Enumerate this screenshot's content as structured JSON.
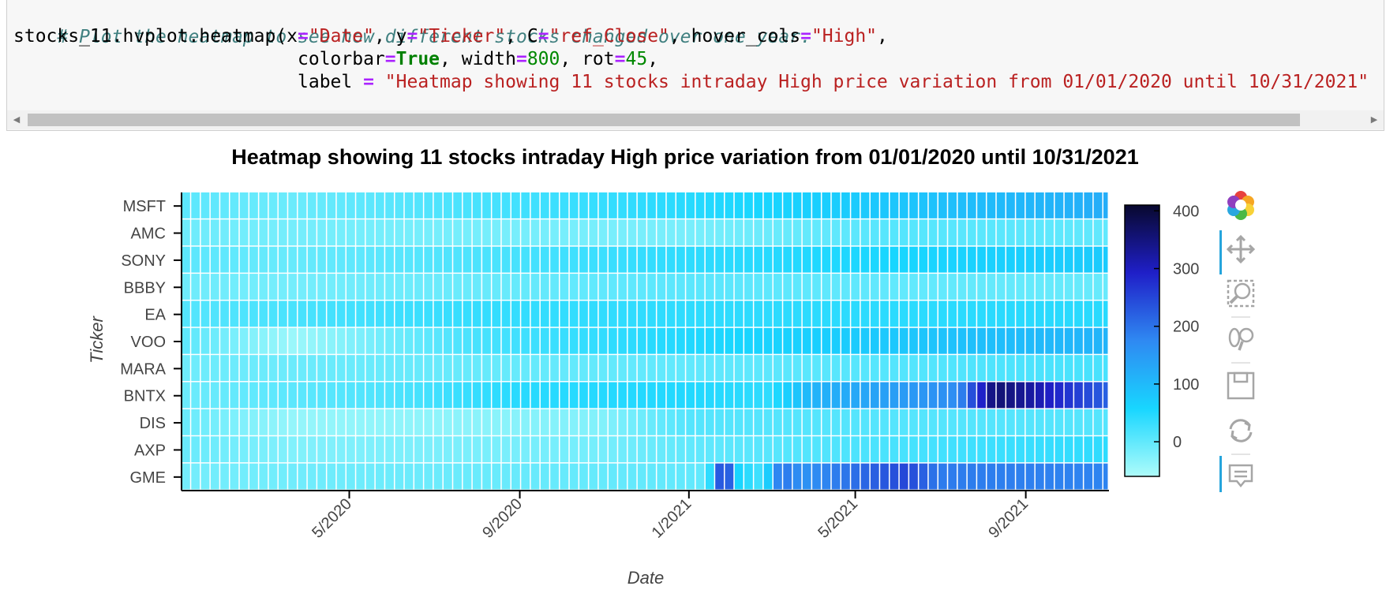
{
  "code": {
    "line1": "# Plot the heatmap to see how different stocks changed over one year.",
    "line2": {
      "a": "stocks_11.hvplot.heatmap(x",
      "eq": "=",
      "s1": "\"Date\"",
      "b": ", y",
      "s2": "\"Ticker\"",
      "c": ", C",
      "s3": "\"ref_Close\"",
      "d": ", hover_cols",
      "s4": "\"High\"",
      "e": ","
    },
    "line3": {
      "a": "colorbar",
      "eq": "=",
      "kw": "True",
      "b": ", width",
      "n1": "800",
      "c": ", rot",
      "n2": "45",
      "d": ","
    },
    "line4": {
      "a": "label ",
      "eq": "=",
      "s": " \"Heatmap showing 11 stocks intraday High price variation from 01/01/2020 until 10/31/2021\""
    }
  },
  "scrollbar": {
    "left_arrow": "◀",
    "right_arrow": "▶"
  },
  "chart_data": {
    "type": "heatmap",
    "title": "Heatmap showing 11 stocks intraday High price variation from 01/01/2020 until 10/31/2021",
    "xlabel": "Date",
    "ylabel": "Ticker",
    "x_range": [
      "2020-01-01",
      "2021-10-31"
    ],
    "x_ticks": [
      {
        "label": "5/2020",
        "date": "2020-05-01"
      },
      {
        "label": "9/2020",
        "date": "2020-09-01"
      },
      {
        "label": "1/2021",
        "date": "2021-01-01"
      },
      {
        "label": "5/2021",
        "date": "2021-05-01"
      },
      {
        "label": "9/2021",
        "date": "2021-09-01"
      }
    ],
    "tickers": [
      "MSFT",
      "AMC",
      "SONY",
      "BBBY",
      "EA",
      "VOO",
      "MARA",
      "BNTX",
      "DIS",
      "AXP",
      "GME"
    ],
    "interval": "weekly",
    "series": [
      {
        "name": "MSFT",
        "profile": [
          {
            "date": "2020-01-01",
            "value": 5
          },
          {
            "date": "2020-03-20",
            "value": -8
          },
          {
            "date": "2020-08-01",
            "value": 20
          },
          {
            "date": "2021-01-01",
            "value": 45
          },
          {
            "date": "2021-10-31",
            "value": 120
          }
        ]
      },
      {
        "name": "AMC",
        "profile": [
          {
            "date": "2020-01-01",
            "value": -10
          },
          {
            "date": "2020-03-20",
            "value": -15
          },
          {
            "date": "2021-01-01",
            "value": -18
          },
          {
            "date": "2021-06-01",
            "value": 10
          },
          {
            "date": "2021-10-31",
            "value": 0
          }
        ]
      },
      {
        "name": "SONY",
        "profile": [
          {
            "date": "2020-01-01",
            "value": 5
          },
          {
            "date": "2020-03-20",
            "value": -5
          },
          {
            "date": "2021-01-01",
            "value": 40
          },
          {
            "date": "2021-10-31",
            "value": 75
          }
        ]
      },
      {
        "name": "BBBY",
        "profile": [
          {
            "date": "2020-01-01",
            "value": -10
          },
          {
            "date": "2020-03-20",
            "value": -15
          },
          {
            "date": "2021-01-01",
            "value": 5
          },
          {
            "date": "2021-10-31",
            "value": -5
          }
        ]
      },
      {
        "name": "EA",
        "profile": [
          {
            "date": "2020-01-01",
            "value": 10
          },
          {
            "date": "2020-04-01",
            "value": 20
          },
          {
            "date": "2020-08-01",
            "value": 35
          },
          {
            "date": "2021-01-01",
            "value": 40
          },
          {
            "date": "2021-10-31",
            "value": 45
          }
        ]
      },
      {
        "name": "VOO",
        "profile": [
          {
            "date": "2020-01-01",
            "value": 5
          },
          {
            "date": "2020-03-23",
            "value": -45
          },
          {
            "date": "2020-05-01",
            "value": -25
          },
          {
            "date": "2020-08-01",
            "value": 20
          },
          {
            "date": "2021-01-01",
            "value": 50
          },
          {
            "date": "2021-10-31",
            "value": 110
          }
        ]
      },
      {
        "name": "MARA",
        "profile": [
          {
            "date": "2020-01-01",
            "value": -10
          },
          {
            "date": "2021-01-01",
            "value": 0
          },
          {
            "date": "2021-10-31",
            "value": 20
          }
        ]
      },
      {
        "name": "BNTX",
        "profile": [
          {
            "date": "2020-01-01",
            "value": -8
          },
          {
            "date": "2020-06-01",
            "value": 15
          },
          {
            "date": "2020-09-01",
            "value": 45
          },
          {
            "date": "2021-01-01",
            "value": 50
          },
          {
            "date": "2021-03-01",
            "value": 40
          },
          {
            "date": "2021-04-01",
            "value": 110
          },
          {
            "date": "2021-07-15",
            "value": 170
          },
          {
            "date": "2021-08-10",
            "value": 360
          },
          {
            "date": "2021-09-01",
            "value": 330
          },
          {
            "date": "2021-10-01",
            "value": 270
          },
          {
            "date": "2021-10-31",
            "value": 220
          }
        ]
      },
      {
        "name": "DIS",
        "profile": [
          {
            "date": "2020-01-01",
            "value": -5
          },
          {
            "date": "2020-03-23",
            "value": -40
          },
          {
            "date": "2020-07-01",
            "value": -35
          },
          {
            "date": "2020-11-01",
            "value": -25
          },
          {
            "date": "2021-01-01",
            "value": 10
          },
          {
            "date": "2021-10-31",
            "value": 10
          }
        ]
      },
      {
        "name": "AXP",
        "profile": [
          {
            "date": "2020-01-01",
            "value": -5
          },
          {
            "date": "2020-03-23",
            "value": -25
          },
          {
            "date": "2020-11-01",
            "value": -15
          },
          {
            "date": "2021-01-01",
            "value": 0
          },
          {
            "date": "2021-10-31",
            "value": 40
          }
        ]
      },
      {
        "name": "GME",
        "profile": [
          {
            "date": "2020-01-01",
            "value": -15
          },
          {
            "date": "2021-01-15",
            "value": 0
          },
          {
            "date": "2021-01-27",
            "value": 320
          },
          {
            "date": "2021-02-05",
            "value": 60
          },
          {
            "date": "2021-02-24",
            "value": 20
          },
          {
            "date": "2021-03-08",
            "value": 200
          },
          {
            "date": "2021-03-25",
            "value": 160
          },
          {
            "date": "2021-06-08",
            "value": 250
          },
          {
            "date": "2021-07-01",
            "value": 190
          },
          {
            "date": "2021-10-31",
            "value": 180
          }
        ]
      }
    ],
    "colorbar": {
      "ticks": [
        0,
        100,
        200,
        300,
        400
      ],
      "range": [
        -60,
        410
      ],
      "stops": [
        "#aefcfa",
        "#18d6ff",
        "#2f89f2",
        "#1f1fc8",
        "#08082e"
      ]
    }
  },
  "toolbar": [
    "bokeh-logo",
    "pan-icon",
    "box-zoom-icon",
    "wheel-zoom-icon",
    "save-icon",
    "reset-icon",
    "hover-icon"
  ]
}
